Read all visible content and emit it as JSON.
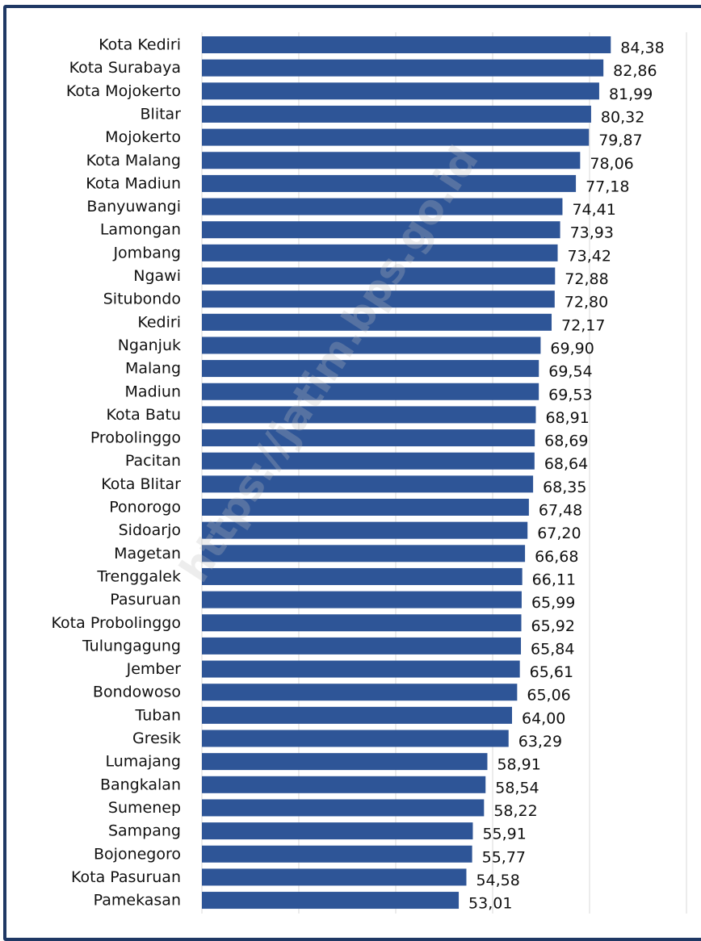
{
  "chart_data": {
    "type": "bar",
    "orientation": "horizontal",
    "title": "",
    "xlabel": "",
    "ylabel": "",
    "xlim": [
      0,
      100
    ],
    "grid": true,
    "bar_color": "#2e5597",
    "watermark": "https://jatim.bps.go.id",
    "categories": [
      "Kota Kediri",
      "Kota Surabaya",
      "Kota Mojokerto",
      "Blitar",
      "Mojokerto",
      "Kota Malang",
      "Kota Madiun",
      "Banyuwangi",
      "Lamongan",
      "Jombang",
      "Ngawi",
      "Situbondo",
      "Kediri",
      "Nganjuk",
      "Malang",
      "Madiun",
      "Kota Batu",
      "Probolinggo",
      "Pacitan",
      "Kota Blitar",
      "Ponorogo",
      "Sidoarjo",
      "Magetan",
      "Trenggalek",
      "Pasuruan",
      "Kota Probolinggo",
      "Tulungagung",
      "Jember",
      "Bondowoso",
      "Tuban",
      "Gresik",
      "Lumajang",
      "Bangkalan",
      "Sumenep",
      "Sampang",
      "Bojonegoro",
      "Kota Pasuruan",
      "Pamekasan"
    ],
    "values": [
      84.38,
      82.86,
      81.99,
      80.32,
      79.87,
      78.06,
      77.18,
      74.41,
      73.93,
      73.42,
      72.88,
      72.8,
      72.17,
      69.9,
      69.54,
      69.53,
      68.91,
      68.69,
      68.64,
      68.35,
      67.48,
      67.2,
      66.68,
      66.11,
      65.99,
      65.92,
      65.84,
      65.61,
      65.06,
      64.0,
      63.29,
      58.91,
      58.54,
      58.22,
      55.91,
      55.77,
      54.58,
      53.01
    ],
    "value_labels": [
      "84,38",
      "82,86",
      "81,99",
      "80,32",
      "79,87",
      "78,06",
      "77,18",
      "74,41",
      "73,93",
      "73,42",
      "72,88",
      "72,80",
      "72,17",
      "69,90",
      "69,54",
      "69,53",
      "68,91",
      "68,69",
      "68,64",
      "68,35",
      "67,48",
      "67,20",
      "66,68",
      "66,11",
      "65,99",
      "65,92",
      "65,84",
      "65,61",
      "65,06",
      "64,00",
      "63,29",
      "58,91",
      "58,54",
      "58,22",
      "55,91",
      "55,77",
      "54,58",
      "53,01"
    ]
  }
}
